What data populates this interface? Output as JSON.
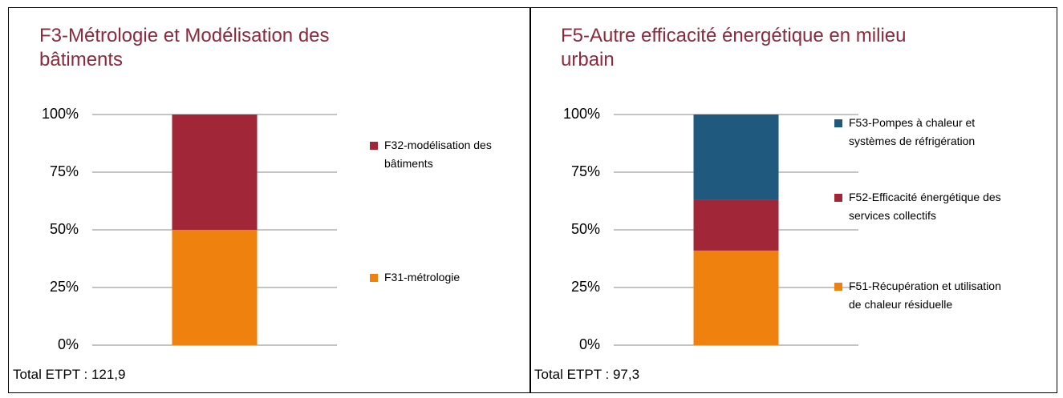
{
  "chart_data": [
    {
      "type": "bar",
      "stacked": true,
      "title": "F3-Métrologie et Modélisation des bâtiments",
      "categories": [
        null
      ],
      "series": [
        {
          "name": "F31-métrologie",
          "color": "#ef820f",
          "values": [
            50
          ]
        },
        {
          "name": "F32-modélisation des bâtiments",
          "color": "#a12738",
          "values": [
            50
          ]
        }
      ],
      "ylim": [
        0,
        100
      ],
      "yticks": [
        {
          "value": 0,
          "label": "0%"
        },
        {
          "value": 25,
          "label": "25%"
        },
        {
          "value": 50,
          "label": "50%"
        },
        {
          "value": 75,
          "label": "75%"
        },
        {
          "value": 100,
          "label": "100%"
        }
      ],
      "grid": true,
      "legend": "right",
      "footer": "Total ETPT : 121,9"
    },
    {
      "type": "bar",
      "stacked": true,
      "title": "F5-Autre efficacité énergétique en milieu urbain",
      "categories": [
        null
      ],
      "series": [
        {
          "name": "F51-Récupération et utilisation de chaleur résiduelle",
          "color": "#ef820f",
          "values": [
            41
          ]
        },
        {
          "name": "F52-Efficacité énergétique des services collectifs",
          "color": "#a12738",
          "values": [
            22
          ]
        },
        {
          "name": "F53-Pompes à chaleur et systèmes de réfrigération",
          "color": "#1f5a7e",
          "values": [
            37
          ]
        }
      ],
      "ylim": [
        0,
        100
      ],
      "yticks": [
        {
          "value": 0,
          "label": "0%"
        },
        {
          "value": 25,
          "label": "25%"
        },
        {
          "value": 50,
          "label": "50%"
        },
        {
          "value": 75,
          "label": "75%"
        },
        {
          "value": 100,
          "label": "100%"
        }
      ],
      "grid": true,
      "legend": "right",
      "footer": "Total ETPT : 97,3"
    }
  ]
}
